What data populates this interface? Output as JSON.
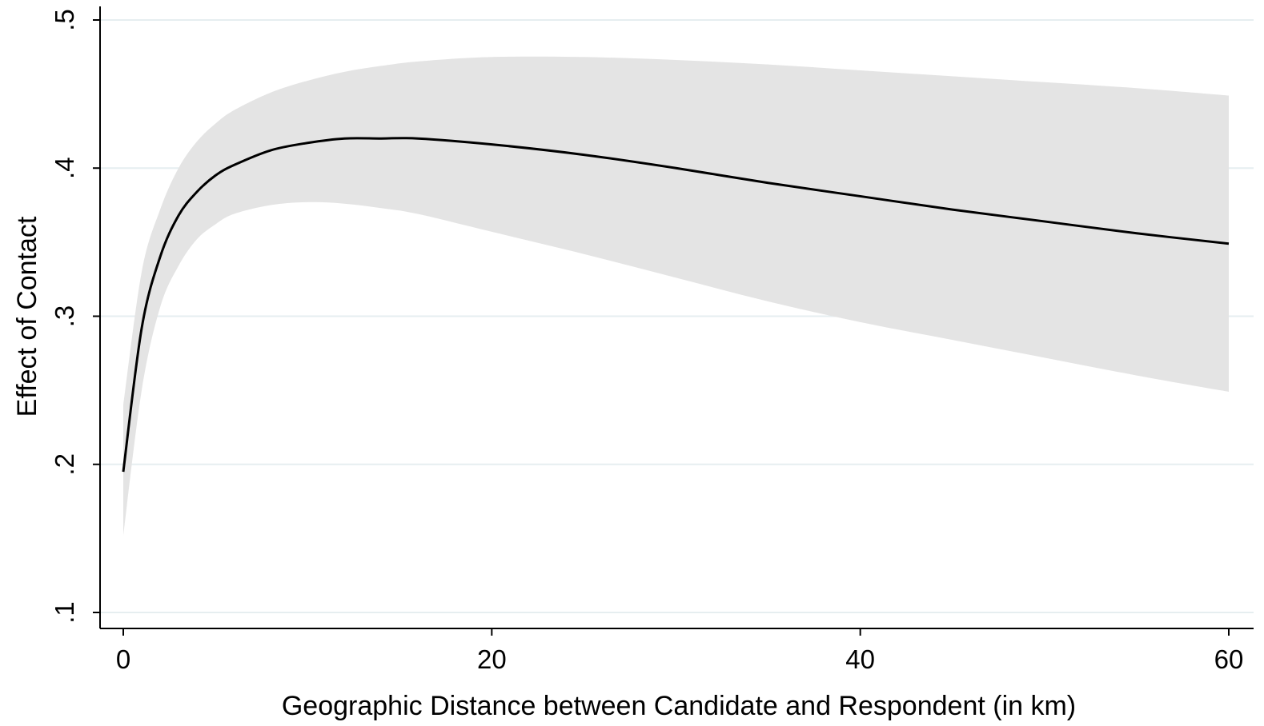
{
  "chart_data": {
    "type": "area",
    "title": "",
    "xlabel": "Geographic Distance between Candidate and Respondent (in km)",
    "ylabel": "Effect of Contact",
    "xlim": [
      0,
      60
    ],
    "ylim": [
      0.1,
      0.5
    ],
    "x_ticks": [
      0,
      20,
      40,
      60
    ],
    "x_tick_labels": [
      "0",
      "20",
      "40",
      "60"
    ],
    "y_ticks": [
      0.1,
      0.2,
      0.3,
      0.4,
      0.5
    ],
    "y_tick_labels": [
      ".1",
      ".2",
      ".3",
      ".4",
      ".5"
    ],
    "grid": "horizontal",
    "legend": "none",
    "x": [
      0,
      1,
      2,
      3,
      4,
      5,
      6,
      8,
      10,
      12,
      14,
      16,
      20,
      25,
      30,
      35,
      40,
      45,
      50,
      55,
      60
    ],
    "series": [
      {
        "role": "estimate",
        "y": [
          0.195,
          0.292,
          0.34,
          0.368,
          0.384,
          0.395,
          0.402,
          0.412,
          0.417,
          0.42,
          0.42,
          0.42,
          0.416,
          0.409,
          0.4,
          0.39,
          0.381,
          0.372,
          0.364,
          0.356,
          0.349
        ]
      },
      {
        "role": "ci_upper",
        "y": [
          0.24,
          0.33,
          0.372,
          0.4,
          0.418,
          0.43,
          0.439,
          0.451,
          0.459,
          0.465,
          0.469,
          0.472,
          0.475,
          0.475,
          0.473,
          0.47,
          0.466,
          0.462,
          0.458,
          0.454,
          0.449
        ]
      },
      {
        "role": "ci_lower",
        "y": [
          0.152,
          0.25,
          0.306,
          0.334,
          0.352,
          0.362,
          0.369,
          0.375,
          0.377,
          0.376,
          0.373,
          0.369,
          0.357,
          0.342,
          0.326,
          0.31,
          0.296,
          0.284,
          0.272,
          0.26,
          0.249
        ]
      }
    ],
    "colors": {
      "band": "#e4e4e4",
      "line": "#000000",
      "grid": "#e6eef0",
      "axis": "#000000"
    }
  }
}
